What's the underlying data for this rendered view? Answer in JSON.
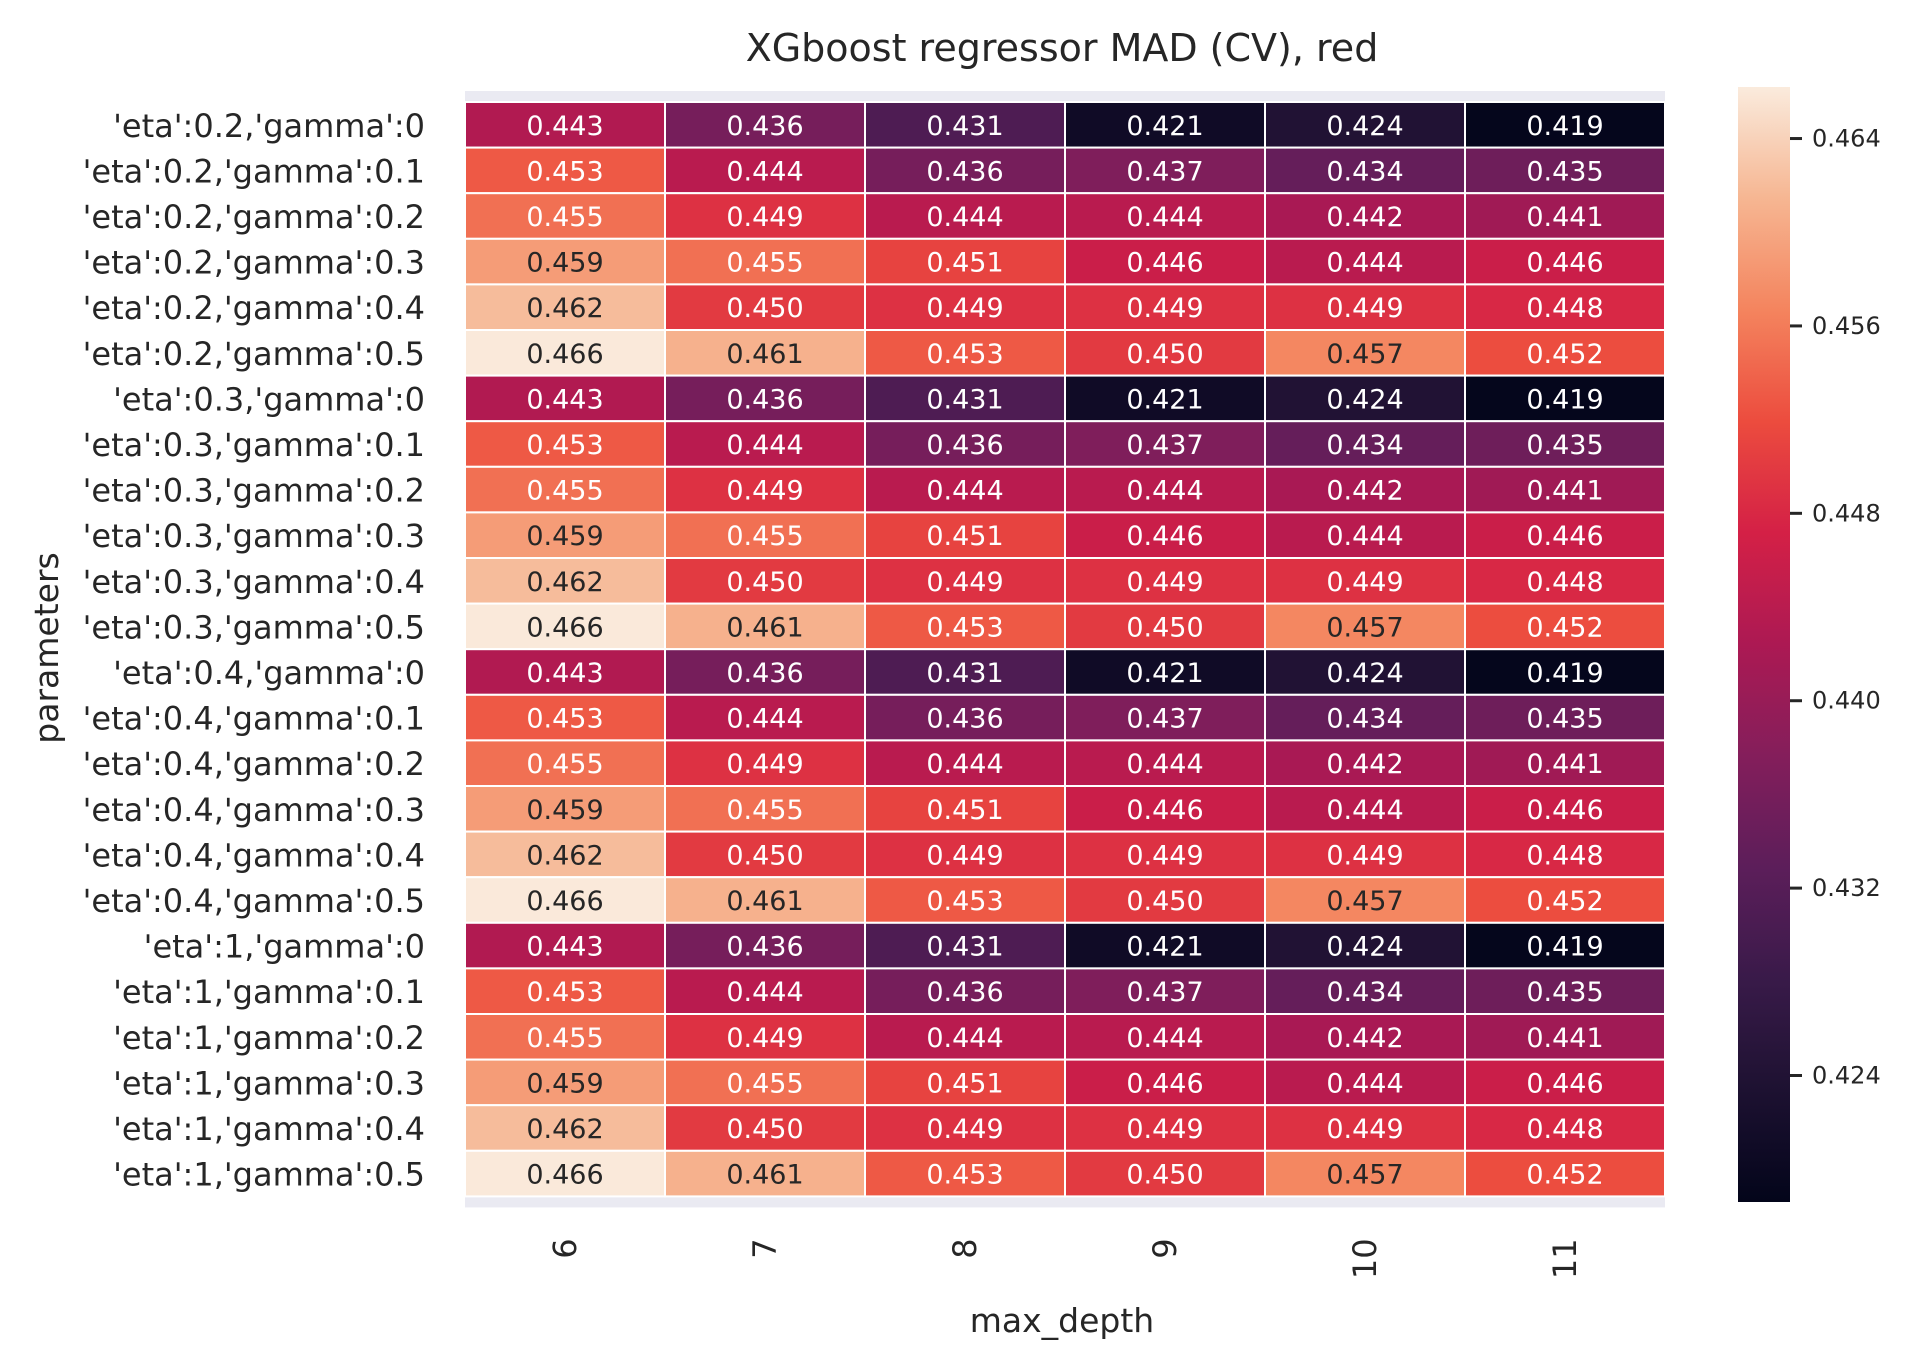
{
  "chart_data": {
    "type": "heatmap",
    "title": "XGboost regressor MAD (CV), red",
    "xlabel": "max_depth",
    "ylabel": "parameters",
    "x": [
      "6",
      "7",
      "8",
      "9",
      "10",
      "11"
    ],
    "y": [
      "'eta':0.2,'gamma':0",
      "'eta':0.2,'gamma':0.1",
      "'eta':0.2,'gamma':0.2",
      "'eta':0.2,'gamma':0.3",
      "'eta':0.2,'gamma':0.4",
      "'eta':0.2,'gamma':0.5",
      "'eta':0.3,'gamma':0",
      "'eta':0.3,'gamma':0.1",
      "'eta':0.3,'gamma':0.2",
      "'eta':0.3,'gamma':0.3",
      "'eta':0.3,'gamma':0.4",
      "'eta':0.3,'gamma':0.5",
      "'eta':0.4,'gamma':0",
      "'eta':0.4,'gamma':0.1",
      "'eta':0.4,'gamma':0.2",
      "'eta':0.4,'gamma':0.3",
      "'eta':0.4,'gamma':0.4",
      "'eta':0.4,'gamma':0.5",
      "'eta':1,'gamma':0",
      "'eta':1,'gamma':0.1",
      "'eta':1,'gamma':0.2",
      "'eta':1,'gamma':0.3",
      "'eta':1,'gamma':0.4",
      "'eta':1,'gamma':0.5"
    ],
    "values": [
      [
        0.443,
        0.436,
        0.431,
        0.421,
        0.424,
        0.419
      ],
      [
        0.453,
        0.444,
        0.436,
        0.437,
        0.434,
        0.435
      ],
      [
        0.455,
        0.449,
        0.444,
        0.444,
        0.442,
        0.441
      ],
      [
        0.459,
        0.455,
        0.451,
        0.446,
        0.444,
        0.446
      ],
      [
        0.462,
        0.45,
        0.449,
        0.449,
        0.449,
        0.448
      ],
      [
        0.466,
        0.461,
        0.453,
        0.45,
        0.457,
        0.452
      ],
      [
        0.443,
        0.436,
        0.431,
        0.421,
        0.424,
        0.419
      ],
      [
        0.453,
        0.444,
        0.436,
        0.437,
        0.434,
        0.435
      ],
      [
        0.455,
        0.449,
        0.444,
        0.444,
        0.442,
        0.441
      ],
      [
        0.459,
        0.455,
        0.451,
        0.446,
        0.444,
        0.446
      ],
      [
        0.462,
        0.45,
        0.449,
        0.449,
        0.449,
        0.448
      ],
      [
        0.466,
        0.461,
        0.453,
        0.45,
        0.457,
        0.452
      ],
      [
        0.443,
        0.436,
        0.431,
        0.421,
        0.424,
        0.419
      ],
      [
        0.453,
        0.444,
        0.436,
        0.437,
        0.434,
        0.435
      ],
      [
        0.455,
        0.449,
        0.444,
        0.444,
        0.442,
        0.441
      ],
      [
        0.459,
        0.455,
        0.451,
        0.446,
        0.444,
        0.446
      ],
      [
        0.462,
        0.45,
        0.449,
        0.449,
        0.449,
        0.448
      ],
      [
        0.466,
        0.461,
        0.453,
        0.45,
        0.457,
        0.452
      ],
      [
        0.443,
        0.436,
        0.431,
        0.421,
        0.424,
        0.419
      ],
      [
        0.453,
        0.444,
        0.436,
        0.437,
        0.434,
        0.435
      ],
      [
        0.455,
        0.449,
        0.444,
        0.444,
        0.442,
        0.441
      ],
      [
        0.459,
        0.455,
        0.451,
        0.446,
        0.444,
        0.446
      ],
      [
        0.462,
        0.45,
        0.449,
        0.449,
        0.449,
        0.448
      ],
      [
        0.466,
        0.461,
        0.453,
        0.45,
        0.457,
        0.452
      ]
    ],
    "value_format": "3 decimals",
    "colormap": "rocket",
    "colorbar": {
      "range": [
        0.4186,
        0.4662
      ],
      "ticks": [
        0.424,
        0.432,
        0.44,
        0.448,
        0.456,
        0.464
      ],
      "tick_labels": [
        "0.424",
        "0.432",
        "0.440",
        "0.448",
        "0.456",
        "0.464"
      ]
    },
    "cell_border_color": "#ffffff",
    "axes_background": "#eaeaf2",
    "x_tick_rotation": "vertical"
  }
}
